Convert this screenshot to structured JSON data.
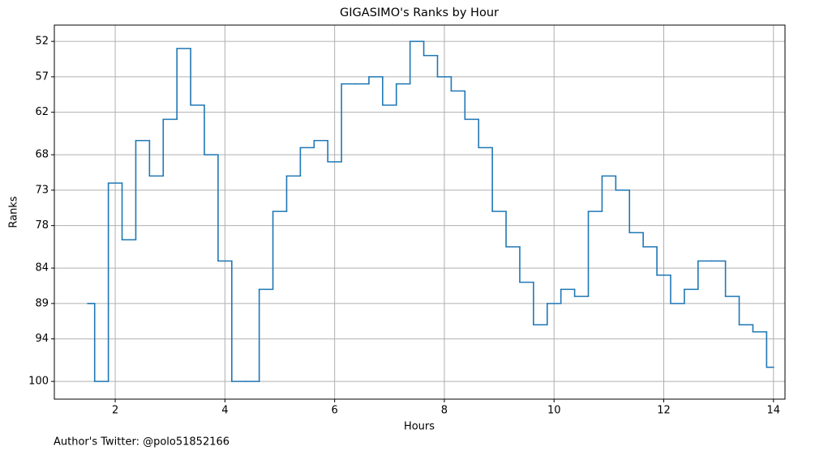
{
  "chart_data": {
    "type": "step",
    "title": "GIGASIMO's Ranks by Hour",
    "x_label": "Hours",
    "y_label": "Ranks",
    "footnote": "Author's Twitter: @polo51852166",
    "x": [
      1.5,
      1.75,
      2,
      2.25,
      2.5,
      2.75,
      3,
      3.25,
      3.5,
      3.75,
      4,
      4.25,
      4.5,
      4.75,
      5,
      5.25,
      5.5,
      5.75,
      6,
      6.25,
      6.5,
      6.75,
      7,
      7.25,
      7.5,
      7.75,
      8,
      8.25,
      8.5,
      8.75,
      9,
      9.25,
      9.5,
      9.75,
      10,
      10.25,
      10.5,
      10.75,
      11,
      11.25,
      11.5,
      11.75,
      12,
      12.25,
      12.5,
      12.75,
      13,
      13.25,
      13.5,
      13.75,
      14
    ],
    "series": [
      {
        "name": "Ranks",
        "color": "#1f77b4",
        "values": [
          89,
          100,
          72,
          80,
          66,
          71,
          63,
          53,
          61,
          68,
          83,
          100,
          100,
          87,
          76,
          71,
          67,
          66,
          69,
          58,
          58,
          57,
          61,
          58,
          52,
          54,
          57,
          59,
          63,
          67,
          76,
          81,
          86,
          92,
          89,
          87,
          88,
          76,
          71,
          73,
          79,
          81,
          85,
          89,
          87,
          83,
          83,
          88,
          92,
          93,
          98
        ]
      }
    ],
    "xlim": [
      0.89,
      14.21
    ],
    "ylim": [
      102.5,
      49.7
    ],
    "xticks": [
      2,
      4,
      6,
      8,
      10,
      12,
      14
    ],
    "yticks": [
      52,
      57,
      62,
      68,
      73,
      78,
      84,
      89,
      94,
      100
    ],
    "grid": true
  }
}
